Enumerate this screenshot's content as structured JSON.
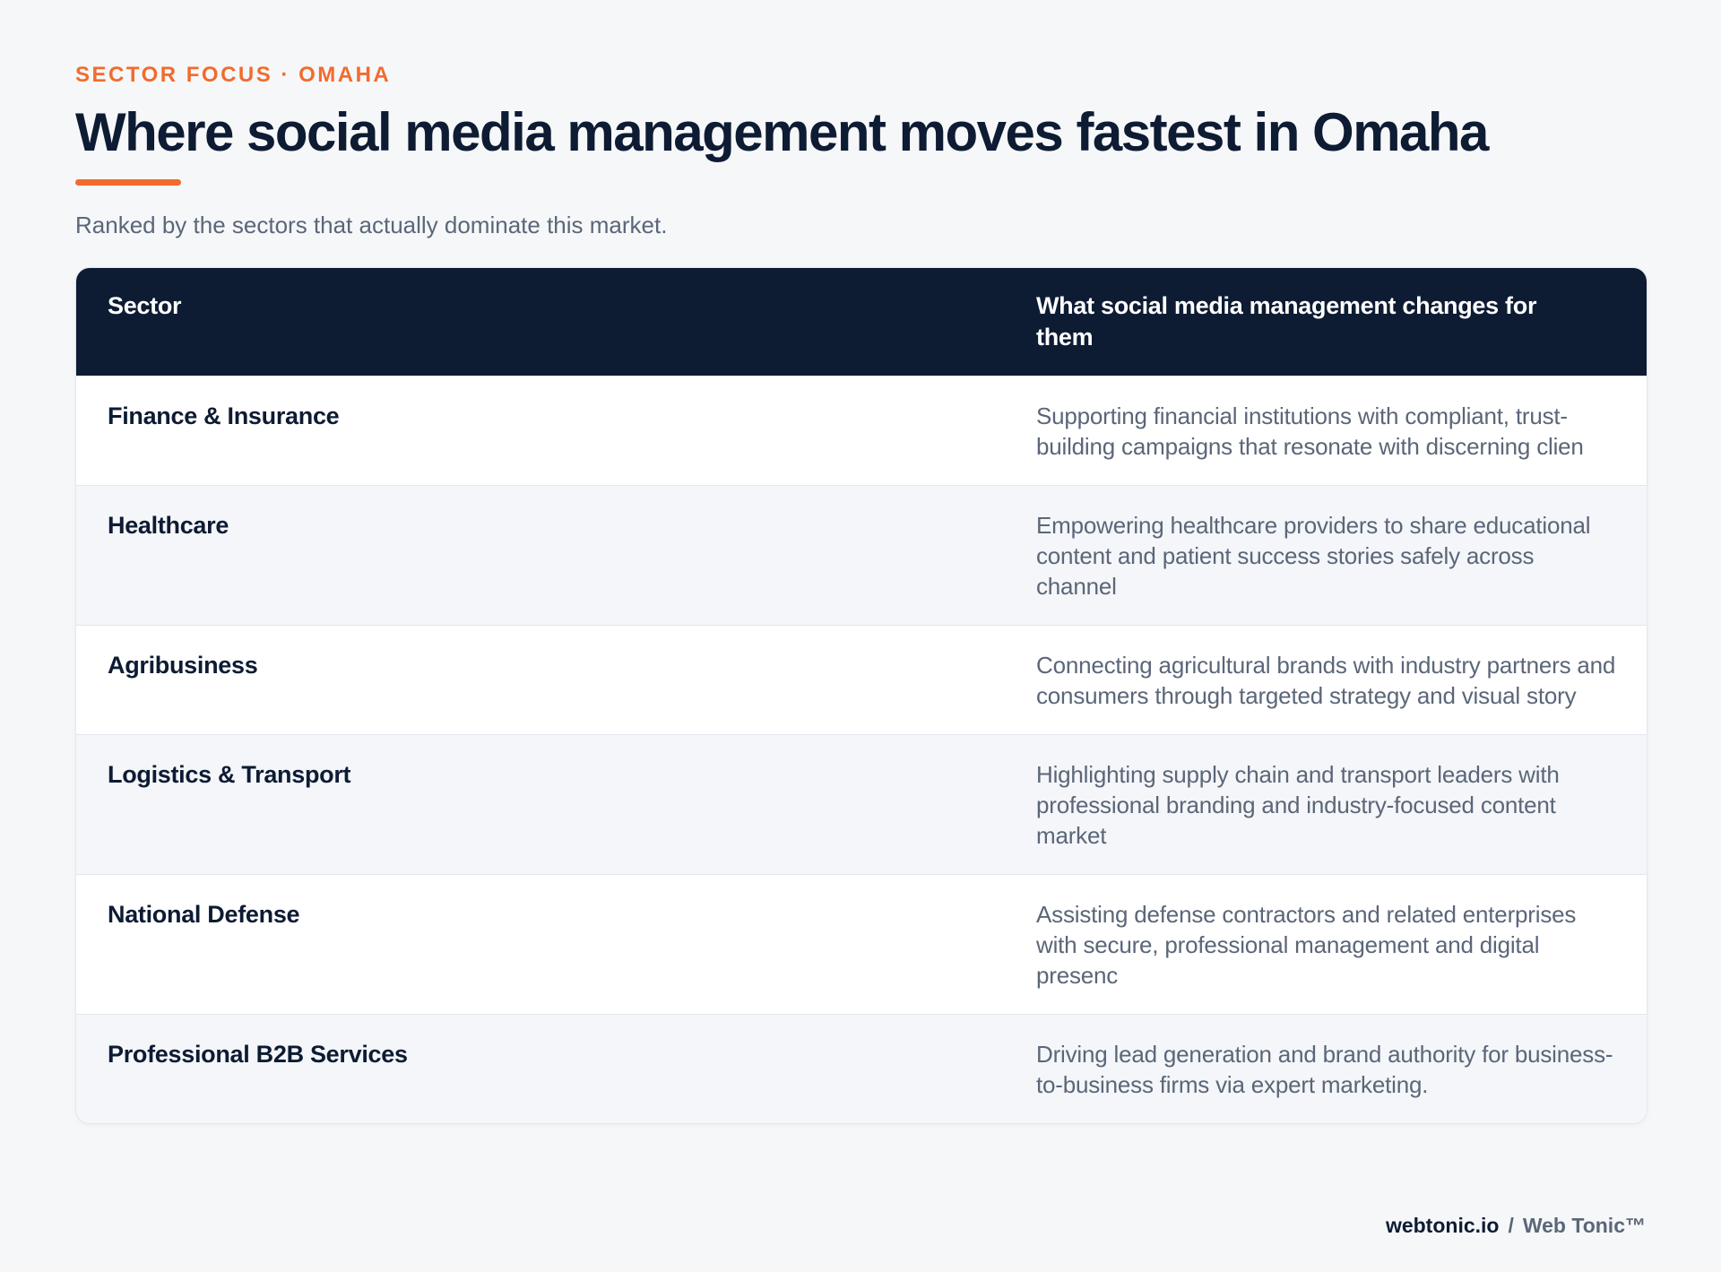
{
  "header": {
    "eyebrow": "SECTOR FOCUS · OMAHA",
    "title": "Where social media management moves fastest in Omaha",
    "subtitle": "Ranked by the sectors that actually dominate this market."
  },
  "table": {
    "columns": [
      "Sector",
      "What social media management changes for them"
    ],
    "rows": [
      {
        "sector": "Finance & Insurance",
        "description": "Supporting financial institutions with compliant, trust-building campaigns that resonate with discerning clien"
      },
      {
        "sector": "Healthcare",
        "description": "Empowering healthcare providers to share educational content and patient success stories safely across channel"
      },
      {
        "sector": "Agribusiness",
        "description": "Connecting agricultural brands with industry partners and consumers through targeted strategy and visual story"
      },
      {
        "sector": "Logistics & Transport",
        "description": "Highlighting supply chain and transport leaders with professional branding and industry-focused content market"
      },
      {
        "sector": "National Defense",
        "description": "Assisting defense contractors and related enterprises with secure, professional management and digital presenc"
      },
      {
        "sector": "Professional B2B Services",
        "description": "Driving lead generation and brand authority for business-to-business firms via expert marketing."
      }
    ]
  },
  "footer": {
    "domain": "webtonic.io",
    "separator": "/",
    "brand": "Web Tonic™"
  },
  "colors": {
    "accent": "#f26b2d",
    "navy": "#0d1b33",
    "muted_text": "#5b6678",
    "background": "#f6f7f9"
  }
}
